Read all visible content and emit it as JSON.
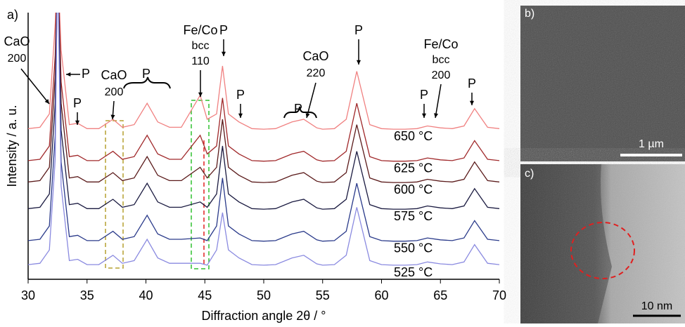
{
  "chart_data": {
    "type": "line",
    "panel_label": "a)",
    "xlabel": "Diffraction angle 2θ / °",
    "ylabel": "Intensity / a. u.",
    "x": [
      30,
      31,
      31.8,
      32.3,
      32.5,
      32.8,
      33.5,
      34.2,
      35,
      36,
      37.2,
      38,
      39,
      40.1,
      41,
      42,
      43,
      44.6,
      45.2,
      46,
      46.5,
      47,
      47.9,
      49,
      50,
      51,
      52.4,
      53.4,
      54.5,
      55,
      56,
      57,
      57.9,
      59,
      60,
      61,
      62,
      63,
      63.9,
      65,
      66,
      67,
      67.9,
      69,
      70
    ],
    "xlim": [
      30,
      70
    ],
    "xticks": [
      30,
      35,
      40,
      45,
      50,
      55,
      60,
      65,
      70
    ],
    "ylim": [
      0,
      100
    ],
    "series": [
      {
        "name": "650 °C",
        "color": "#f08080",
        "values": [
          56.5,
          57,
          62,
          96,
          120,
          86,
          58,
          58.5,
          56.5,
          56.5,
          60,
          57,
          58,
          66,
          59,
          57,
          57,
          69,
          60,
          62,
          80,
          62,
          59,
          56.5,
          56.3,
          56.5,
          59,
          60,
          56.8,
          56.3,
          56.5,
          60,
          78,
          58,
          56.5,
          56.3,
          56.3,
          56.5,
          57.5,
          56.8,
          56.5,
          57.5,
          64,
          57,
          56.5
        ]
      },
      {
        "name": "625 °C",
        "color": "#a0282a",
        "values": [
          44.5,
          45,
          50,
          84,
          120,
          74,
          46,
          46.5,
          44.5,
          44.5,
          48,
          45,
          46,
          54,
          47,
          45,
          45,
          54,
          47,
          50,
          68,
          50,
          47,
          44.5,
          44.3,
          44.5,
          47,
          48,
          44.8,
          44.3,
          44.5,
          48,
          66,
          46,
          44.5,
          44.3,
          44.3,
          44.5,
          45.5,
          44.8,
          44.5,
          45.5,
          52,
          45,
          44.5
        ]
      },
      {
        "name": "600 °C",
        "color": "#5a1a1a",
        "values": [
          36.5,
          37,
          42,
          76,
          120,
          66,
          38,
          38.5,
          36.5,
          36.5,
          40,
          37,
          38,
          46,
          39,
          37,
          37,
          42,
          38,
          42,
          60,
          42,
          39,
          36.5,
          36.3,
          36.5,
          39,
          40,
          36.8,
          36.3,
          36.5,
          40,
          58,
          38,
          36.5,
          36.3,
          36.3,
          36.5,
          37.5,
          36.8,
          36.5,
          37.5,
          44,
          37,
          36.5
        ]
      },
      {
        "name": "575 °C",
        "color": "#1a1a40",
        "values": [
          26.5,
          27,
          32,
          66,
          120,
          56,
          28,
          28.5,
          26.5,
          26.5,
          30,
          27,
          28,
          36,
          29,
          27,
          27,
          29,
          27,
          32,
          50,
          32,
          29,
          26.5,
          26.3,
          26.5,
          29,
          30,
          26.8,
          26.3,
          26.5,
          30,
          48,
          28,
          26.5,
          26.3,
          26.3,
          26.5,
          27.5,
          26.8,
          26.5,
          27.5,
          34,
          27,
          26.5
        ]
      },
      {
        "name": "550 °C",
        "color": "#2a3a8a",
        "values": [
          14.5,
          15,
          20,
          54,
          120,
          44,
          16,
          16.5,
          14.5,
          14.5,
          18,
          15,
          16,
          24,
          17,
          15,
          15,
          15.5,
          14.5,
          20,
          38,
          20,
          17,
          14.5,
          14.3,
          14.5,
          17,
          18,
          14.8,
          14.3,
          14.5,
          18,
          36,
          16,
          14.5,
          14.3,
          14.3,
          14.5,
          15.5,
          14.8,
          14.5,
          15.5,
          22,
          15,
          14.5
        ]
      },
      {
        "name": "525 °C",
        "color": "#8a8ae0",
        "values": [
          5.5,
          6,
          11,
          45,
          120,
          35,
          7,
          7.5,
          5.5,
          5.5,
          9,
          6,
          7,
          15,
          8,
          6,
          6,
          6,
          5.3,
          11,
          25,
          11,
          8,
          5.5,
          5.3,
          5.5,
          8,
          9,
          5.8,
          5.3,
          5.5,
          9,
          27,
          7,
          5.5,
          5.3,
          5.3,
          5.5,
          6.5,
          5.8,
          5.5,
          6.5,
          13,
          6,
          5.5
        ]
      }
    ],
    "annotations": [
      "CaO",
      "200",
      "P",
      "P",
      "CaO",
      "200",
      "P",
      "Fe/Co",
      "bcc",
      "110",
      "P",
      "P",
      "CaO",
      "220",
      "P",
      "P",
      "P",
      "Fe/Co",
      "bcc",
      "200",
      "P"
    ]
  },
  "panels": [
    {
      "label": "b)",
      "scale_bar": "1 µm"
    },
    {
      "label": "c)",
      "scale_bar": "10 nm"
    }
  ]
}
